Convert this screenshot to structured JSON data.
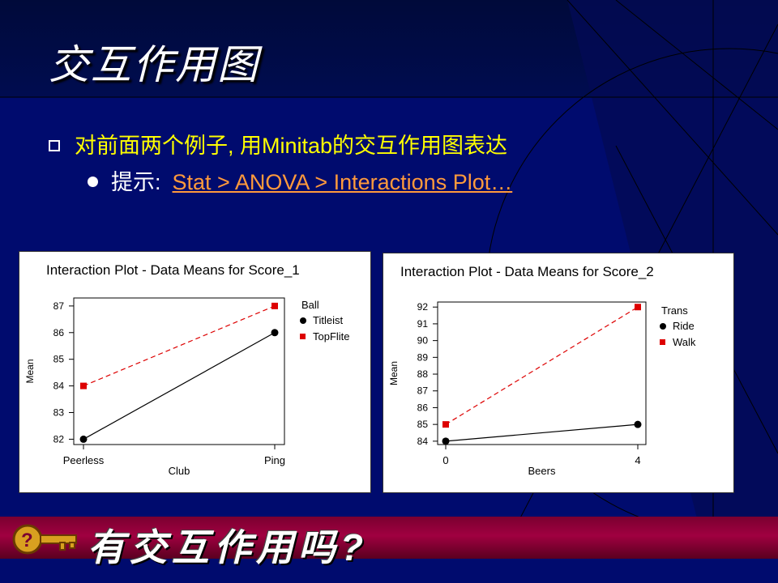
{
  "slide": {
    "title": "交互作用图",
    "bullet1": "对前面两个例子, 用Minitab的交互作用图表达",
    "bullet2_prefix": "提示:",
    "bullet2_link": "Stat > ANOVA > Interactions Plot…",
    "banner": "有交互作用吗?"
  },
  "colors": {
    "background": "#000b6e",
    "accent_yellow": "#ffff00",
    "link": "#ff9a3c",
    "series_red": "#dd0000"
  },
  "chart_data": [
    {
      "type": "line",
      "title": "Interaction Plot - Data Means for Score_1",
      "xlabel": "Club",
      "ylabel": "Mean",
      "categories": [
        "Peerless",
        "Ping"
      ],
      "yticks": [
        82,
        83,
        84,
        85,
        86,
        87
      ],
      "ylim": [
        81.8,
        87.3
      ],
      "legend_title": "Ball",
      "series": [
        {
          "name": "Titleist",
          "values": [
            82,
            86
          ],
          "color": "#000000",
          "marker": "circle",
          "dash": false
        },
        {
          "name": "TopFlite",
          "values": [
            84,
            87
          ],
          "color": "#dd0000",
          "marker": "square",
          "dash": true
        }
      ]
    },
    {
      "type": "line",
      "title": "Interaction Plot - Data Means for Score_2",
      "xlabel": "Beers",
      "ylabel": "Mean",
      "categories": [
        "0",
        "4"
      ],
      "yticks": [
        84,
        85,
        86,
        87,
        88,
        89,
        90,
        91,
        92
      ],
      "ylim": [
        83.8,
        92.3
      ],
      "legend_title": "Trans",
      "series": [
        {
          "name": "Ride",
          "values": [
            84,
            85
          ],
          "color": "#000000",
          "marker": "circle",
          "dash": false
        },
        {
          "name": "Walk",
          "values": [
            85,
            92
          ],
          "color": "#dd0000",
          "marker": "square",
          "dash": true
        }
      ]
    }
  ]
}
